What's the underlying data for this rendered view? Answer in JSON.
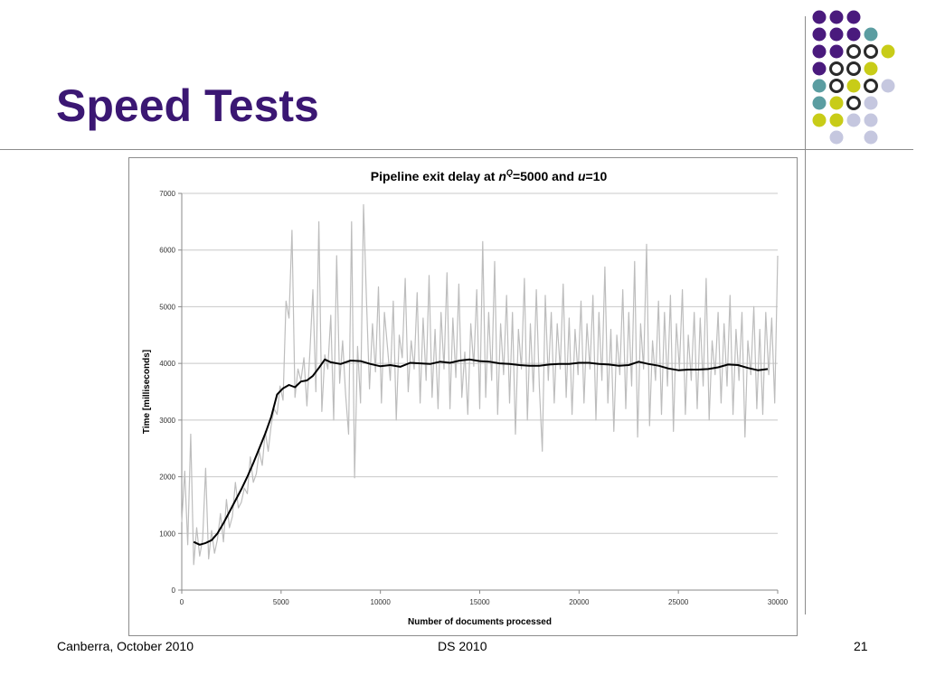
{
  "slide": {
    "title": "Speed Tests"
  },
  "footer": {
    "left": "Canberra, October 2010",
    "center": "DS 2010",
    "page_number": "21"
  },
  "decoration": {
    "dot_colors": {
      "purple": "#4a1a7d",
      "teal": "#5b9da1",
      "yellow": "#c8cc18",
      "ring": "#2a2a2a",
      "lavender": "#c5c7df"
    },
    "dot_grid": [
      [
        "purple",
        "purple",
        "purple",
        null,
        null
      ],
      [
        "purple",
        "purple",
        "purple",
        "teal",
        null
      ],
      [
        "purple",
        "purple",
        "ring",
        "ring",
        "yellow"
      ],
      [
        "purple",
        "ring",
        "ring",
        "yellow",
        null
      ],
      [
        "teal",
        "ring",
        "yellow",
        "ring",
        "lavender"
      ],
      [
        "teal",
        "yellow",
        "ring",
        "lavender",
        null
      ],
      [
        "yellow",
        "yellow",
        "lavender",
        "lavender",
        null
      ],
      [
        null,
        "lavender",
        null,
        "lavender",
        null
      ]
    ]
  },
  "chart_data": {
    "type": "line",
    "title_parts": [
      "Pipeline exit delay at ",
      "n",
      "Q",
      "=5000 and ",
      "u",
      "=10"
    ],
    "xlabel": "Number of documents processed",
    "ylabel": "Time [milliseconds]",
    "xlim": [
      0,
      30000
    ],
    "ylim": [
      0,
      7000
    ],
    "x_ticks": [
      0,
      5000,
      10000,
      15000,
      20000,
      25000,
      30000
    ],
    "x_tick_labels": [
      "0",
      "5000",
      "10000",
      "15000",
      "20000",
      "25000",
      "30000"
    ],
    "y_ticks": [
      0,
      1000,
      2000,
      3000,
      4000,
      5000,
      6000,
      7000
    ],
    "y_tick_labels": [
      "0",
      "1000",
      "2000",
      "3000",
      "4000",
      "5000",
      "6000",
      "7000"
    ],
    "grid": "horizontal",
    "legend": "none",
    "series": [
      {
        "kind": "raw",
        "color": "#bdbdbd",
        "x": [
          0,
          150,
          300,
          450,
          600,
          750,
          900,
          1050,
          1200,
          1350,
          1500,
          1650,
          1800,
          1950,
          2100,
          2250,
          2400,
          2550,
          2700,
          2850,
          3000,
          3150,
          3300,
          3450,
          3600,
          3750,
          3900,
          4050,
          4200,
          4350,
          4500,
          4650,
          4800,
          4950,
          5100,
          5250,
          5400,
          5550,
          5700,
          5850,
          6000,
          6150,
          6300,
          6450,
          6600,
          6750,
          6900,
          7050,
          7200,
          7350,
          7500,
          7650,
          7800,
          7950,
          8100,
          8250,
          8400,
          8550,
          8700,
          8850,
          9000,
          9150,
          9300,
          9450,
          9600,
          9750,
          9900,
          10050,
          10200,
          10350,
          10500,
          10650,
          10800,
          10950,
          11100,
          11250,
          11400,
          11550,
          11700,
          11850,
          12000,
          12150,
          12300,
          12450,
          12600,
          12750,
          12900,
          13050,
          13200,
          13350,
          13500,
          13650,
          13800,
          13950,
          14100,
          14250,
          14400,
          14550,
          14700,
          14850,
          15000,
          15150,
          15300,
          15450,
          15600,
          15750,
          15900,
          16050,
          16200,
          16350,
          16500,
          16650,
          16800,
          16950,
          17100,
          17250,
          17400,
          17550,
          17700,
          17850,
          18000,
          18150,
          18300,
          18450,
          18600,
          18750,
          18900,
          19050,
          19200,
          19350,
          19500,
          19650,
          19800,
          19950,
          20100,
          20250,
          20400,
          20550,
          20700,
          20850,
          21000,
          21150,
          21300,
          21450,
          21600,
          21750,
          21900,
          22050,
          22200,
          22350,
          22500,
          22650,
          22800,
          22950,
          23100,
          23250,
          23400,
          23550,
          23700,
          23850,
          24000,
          24150,
          24300,
          24450,
          24600,
          24750,
          24900,
          25050,
          25200,
          25350,
          25500,
          25650,
          25800,
          25950,
          26100,
          26250,
          26400,
          26550,
          26700,
          26850,
          27000,
          27150,
          27300,
          27450,
          27600,
          27750,
          27900,
          28050,
          28200,
          28350,
          28500,
          28650,
          28800,
          28950,
          29100,
          29250,
          29400,
          29550,
          29700,
          29850,
          30000
        ],
        "y": [
          1200,
          2100,
          800,
          2750,
          450,
          1100,
          600,
          900,
          2150,
          550,
          1050,
          650,
          900,
          1350,
          850,
          1600,
          1100,
          1300,
          1900,
          1450,
          1550,
          1800,
          1700,
          2350,
          1900,
          2050,
          2450,
          2200,
          2800,
          2450,
          2900,
          3200,
          3100,
          3600,
          3350,
          5100,
          4800,
          6350,
          3400,
          3900,
          3700,
          4100,
          3250,
          4200,
          5300,
          3500,
          6500,
          3150,
          4150,
          3900,
          4850,
          3000,
          5900,
          3650,
          4400,
          3450,
          2750,
          6500,
          1980,
          4300,
          3300,
          6800,
          5100,
          3550,
          4700,
          3850,
          5350,
          3300,
          4900,
          4300,
          3700,
          5100,
          3000,
          4500,
          4100,
          5500,
          3500,
          4400,
          3900,
          5250,
          3300,
          4800,
          3700,
          5550,
          3400,
          4600,
          3200,
          4900,
          3900,
          5600,
          3200,
          4800,
          3750,
          5400,
          3400,
          4200,
          3100,
          4700,
          3950,
          5300,
          3200,
          6150,
          3400,
          4900,
          3700,
          5800,
          3100,
          4700,
          3800,
          5200,
          3300,
          4900,
          2750,
          4600,
          3900,
          5500,
          3000,
          4700,
          3500,
          5300,
          3600,
          2450,
          5200,
          3700,
          4900,
          3300,
          4700,
          3900,
          5400,
          3400,
          4800,
          3100,
          4600,
          3800,
          5100,
          3300,
          4700,
          3900,
          5200,
          3000,
          4900,
          3700,
          5700,
          3300,
          4600,
          2800,
          4500,
          3800,
          5300,
          3200,
          4900,
          3600,
          5800,
          2700,
          4700,
          3900,
          6100,
          2900,
          4400,
          3700,
          5100,
          3100,
          4900,
          3600,
          5200,
          2800,
          4700,
          3900,
          5300,
          3100,
          4500,
          3700,
          4900,
          3200,
          4800,
          3600,
          5500,
          3000,
          4400,
          3800,
          4900,
          3300,
          4700,
          3600,
          5200,
          3100,
          4600,
          3700,
          4900,
          2700,
          4400,
          3800,
          5000,
          3200,
          4600,
          3100,
          4900,
          3800,
          4800,
          3300,
          5900
        ]
      },
      {
        "kind": "moving average",
        "color": "#000000",
        "x": [
          600,
          900,
          1200,
          1500,
          1800,
          2100,
          2400,
          2700,
          3000,
          3300,
          3600,
          3900,
          4200,
          4500,
          4800,
          5100,
          5400,
          5700,
          6000,
          6300,
          6600,
          6900,
          7200,
          7500,
          8000,
          8500,
          9000,
          9500,
          10000,
          10500,
          11000,
          11500,
          12000,
          12500,
          13000,
          13500,
          14000,
          14500,
          15000,
          15500,
          16000,
          16500,
          17000,
          17500,
          18000,
          18500,
          19000,
          19500,
          20000,
          20500,
          21000,
          21500,
          22000,
          22500,
          23000,
          23500,
          24000,
          24500,
          25000,
          25500,
          26000,
          26500,
          27000,
          27500,
          28000,
          28500,
          29000,
          29500
        ],
        "y": [
          850,
          800,
          830,
          880,
          1000,
          1180,
          1380,
          1580,
          1780,
          2000,
          2240,
          2500,
          2760,
          3050,
          3450,
          3560,
          3620,
          3580,
          3680,
          3700,
          3780,
          3920,
          4070,
          4020,
          3990,
          4050,
          4040,
          3990,
          3950,
          3970,
          3940,
          4010,
          4000,
          3990,
          4030,
          4010,
          4050,
          4070,
          4040,
          4030,
          4000,
          3990,
          3970,
          3960,
          3960,
          3980,
          3990,
          3990,
          4010,
          4010,
          3990,
          3980,
          3960,
          3970,
          4030,
          3990,
          3960,
          3910,
          3880,
          3890,
          3890,
          3900,
          3930,
          3980,
          3970,
          3920,
          3880,
          3900
        ]
      }
    ]
  }
}
